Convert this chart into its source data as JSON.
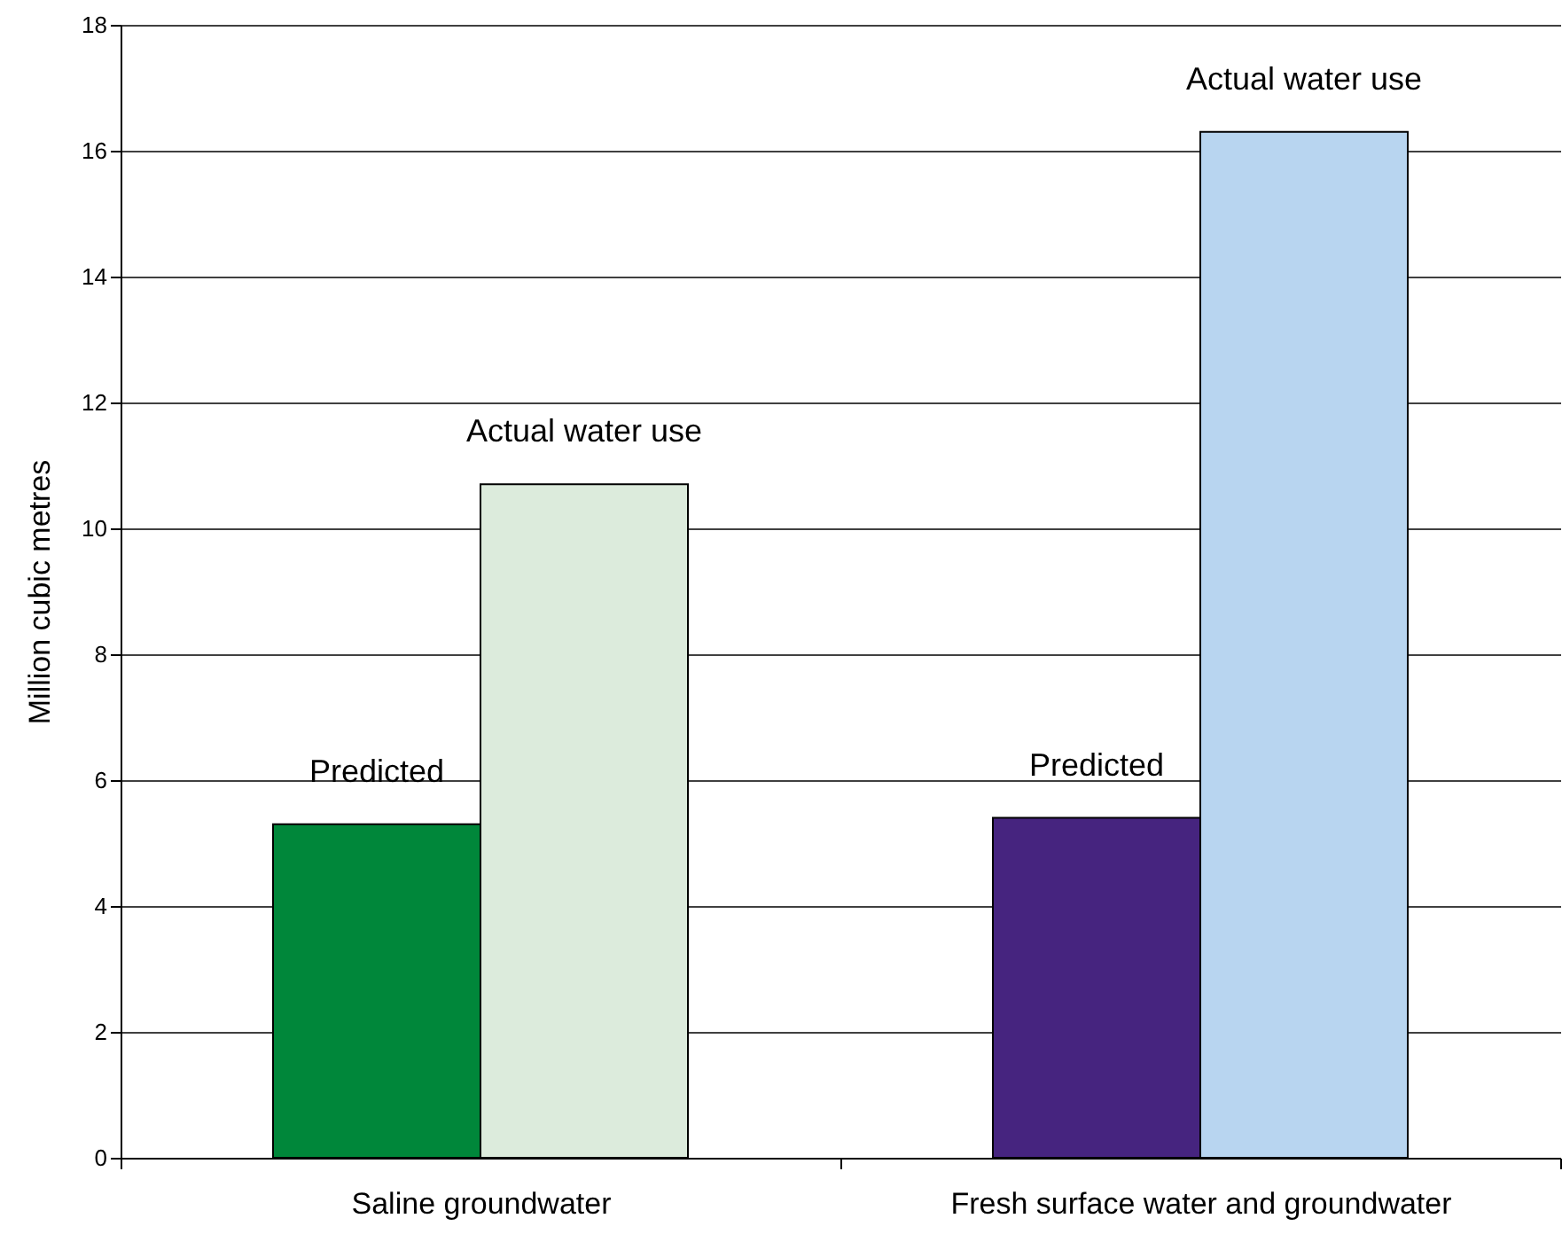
{
  "chart_data": {
    "type": "bar",
    "ylabel": "Million cubic metres",
    "categories": [
      "Saline groundwater",
      "Fresh surface water and groundwater"
    ],
    "series": [
      {
        "name": "Predicted",
        "colors": [
          "#00873a",
          "#46247f"
        ],
        "values": [
          5.3,
          5.4
        ]
      },
      {
        "name": "Actual water use",
        "colors": [
          "#dcebdc",
          "#b8d5f0"
        ],
        "values": [
          10.7,
          16.3
        ]
      }
    ],
    "ylim": [
      0,
      18
    ],
    "yticks": [
      0,
      2,
      4,
      6,
      8,
      10,
      12,
      14,
      16,
      18
    ],
    "grid": "y"
  }
}
